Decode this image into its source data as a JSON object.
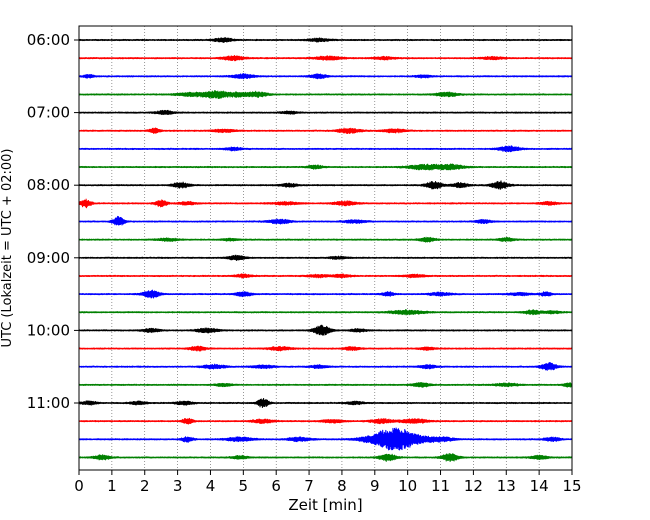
{
  "chart_data": {
    "type": "line",
    "title": "",
    "xlabel": "Zeit  [min]",
    "ylabel": "UTC (Lokalzeit = UTC + 02:00)",
    "xlim": [
      0,
      15
    ],
    "x_ticks": [
      0,
      1,
      2,
      3,
      4,
      5,
      6,
      7,
      8,
      9,
      10,
      11,
      12,
      13,
      14,
      15
    ],
    "x_tick_labels": [
      "0",
      "1",
      "2",
      "3",
      "4",
      "5",
      "6",
      "7",
      "8",
      "9",
      "10",
      "11",
      "12",
      "13",
      "14",
      "15"
    ],
    "y_tick_labels": [
      {
        "label": "06:00",
        "trace_index": 0
      },
      {
        "label": "07:00",
        "trace_index": 4
      },
      {
        "label": "08:00",
        "trace_index": 8
      },
      {
        "label": "09:00",
        "trace_index": 12
      },
      {
        "label": "10:00",
        "trace_index": 16
      },
      {
        "label": "11:00",
        "trace_index": 20
      }
    ],
    "grid": {
      "vertical": true,
      "style": "dotted"
    },
    "color_cycle": [
      "#000000",
      "#ff0000",
      "#0000ff",
      "#008000"
    ],
    "traces_count": 24,
    "trace_interval_minutes": 15,
    "base_noise": 0.18,
    "events": [
      [
        {
          "t": 4.4,
          "a": 0.8,
          "w": 0.35
        },
        {
          "t": 7.3,
          "a": 0.6,
          "w": 0.4
        }
      ],
      [
        {
          "t": 4.7,
          "a": 0.8,
          "w": 0.4
        },
        {
          "t": 7.6,
          "a": 0.7,
          "w": 0.5
        },
        {
          "t": 9.3,
          "a": 0.5,
          "w": 0.4
        },
        {
          "t": 12.6,
          "a": 0.5,
          "w": 0.4
        }
      ],
      [
        {
          "t": 0.3,
          "a": 0.6,
          "w": 0.2
        },
        {
          "t": 5.0,
          "a": 0.8,
          "w": 0.4
        },
        {
          "t": 7.3,
          "a": 0.8,
          "w": 0.3
        },
        {
          "t": 10.5,
          "a": 0.5,
          "w": 0.3
        }
      ],
      [
        {
          "t": 3.5,
          "a": 0.7,
          "w": 0.6
        },
        {
          "t": 4.2,
          "a": 1.3,
          "w": 0.4
        },
        {
          "t": 4.8,
          "a": 0.9,
          "w": 0.3
        },
        {
          "t": 5.4,
          "a": 1.0,
          "w": 0.4
        },
        {
          "t": 11.2,
          "a": 0.8,
          "w": 0.4
        }
      ],
      [
        {
          "t": 2.6,
          "a": 0.8,
          "w": 0.3
        },
        {
          "t": 6.4,
          "a": 0.5,
          "w": 0.3
        }
      ],
      [
        {
          "t": 2.3,
          "a": 0.9,
          "w": 0.2
        },
        {
          "t": 4.4,
          "a": 0.6,
          "w": 0.4
        },
        {
          "t": 8.2,
          "a": 0.9,
          "w": 0.4
        },
        {
          "t": 9.6,
          "a": 0.7,
          "w": 0.4
        }
      ],
      [
        {
          "t": 4.7,
          "a": 0.6,
          "w": 0.3
        },
        {
          "t": 13.1,
          "a": 1.0,
          "w": 0.4
        }
      ],
      [
        {
          "t": 7.2,
          "a": 0.6,
          "w": 0.3
        },
        {
          "t": 10.5,
          "a": 0.9,
          "w": 0.6
        },
        {
          "t": 11.3,
          "a": 0.9,
          "w": 0.5
        }
      ],
      [
        {
          "t": 3.1,
          "a": 1.1,
          "w": 0.3
        },
        {
          "t": 6.4,
          "a": 0.7,
          "w": 0.3
        },
        {
          "t": 10.8,
          "a": 1.4,
          "w": 0.3
        },
        {
          "t": 11.6,
          "a": 0.9,
          "w": 0.3
        },
        {
          "t": 12.8,
          "a": 1.5,
          "w": 0.3
        }
      ],
      [
        {
          "t": 0.2,
          "a": 1.5,
          "w": 0.2
        },
        {
          "t": 2.5,
          "a": 1.3,
          "w": 0.2
        },
        {
          "t": 3.3,
          "a": 0.6,
          "w": 0.3
        },
        {
          "t": 6.3,
          "a": 0.5,
          "w": 0.5
        },
        {
          "t": 8.1,
          "a": 0.8,
          "w": 0.4
        },
        {
          "t": 14.3,
          "a": 0.6,
          "w": 0.3
        }
      ],
      [
        {
          "t": 1.2,
          "a": 1.8,
          "w": 0.2
        },
        {
          "t": 6.1,
          "a": 0.8,
          "w": 0.4
        },
        {
          "t": 8.4,
          "a": 0.6,
          "w": 0.4
        },
        {
          "t": 12.3,
          "a": 0.6,
          "w": 0.3
        }
      ],
      [
        {
          "t": 2.7,
          "a": 0.5,
          "w": 0.4
        },
        {
          "t": 4.6,
          "a": 0.4,
          "w": 0.3
        },
        {
          "t": 10.6,
          "a": 0.8,
          "w": 0.3
        },
        {
          "t": 13.0,
          "a": 0.6,
          "w": 0.3
        }
      ],
      [
        {
          "t": 4.8,
          "a": 0.9,
          "w": 0.3
        },
        {
          "t": 7.9,
          "a": 0.5,
          "w": 0.3
        }
      ],
      [
        {
          "t": 5.0,
          "a": 0.6,
          "w": 0.3
        },
        {
          "t": 7.3,
          "a": 0.5,
          "w": 0.4
        },
        {
          "t": 8.0,
          "a": 0.6,
          "w": 0.3
        },
        {
          "t": 10.2,
          "a": 0.5,
          "w": 0.4
        }
      ],
      [
        {
          "t": 2.2,
          "a": 1.4,
          "w": 0.3
        },
        {
          "t": 5.0,
          "a": 0.8,
          "w": 0.3
        },
        {
          "t": 9.4,
          "a": 0.9,
          "w": 0.2
        },
        {
          "t": 11.0,
          "a": 0.6,
          "w": 0.4
        },
        {
          "t": 13.4,
          "a": 0.5,
          "w": 0.4
        },
        {
          "t": 14.2,
          "a": 0.8,
          "w": 0.2
        }
      ],
      [
        {
          "t": 10.0,
          "a": 0.8,
          "w": 0.6
        },
        {
          "t": 13.8,
          "a": 0.8,
          "w": 0.3
        },
        {
          "t": 14.4,
          "a": 0.5,
          "w": 0.3
        }
      ],
      [
        {
          "t": 2.2,
          "a": 0.7,
          "w": 0.3
        },
        {
          "t": 3.9,
          "a": 0.8,
          "w": 0.4
        },
        {
          "t": 7.4,
          "a": 1.9,
          "w": 0.3
        },
        {
          "t": 8.5,
          "a": 0.6,
          "w": 0.3
        }
      ],
      [
        {
          "t": 3.6,
          "a": 0.8,
          "w": 0.3
        },
        {
          "t": 6.1,
          "a": 0.7,
          "w": 0.4
        },
        {
          "t": 8.3,
          "a": 0.6,
          "w": 0.3
        },
        {
          "t": 10.6,
          "a": 0.5,
          "w": 0.3
        }
      ],
      [
        {
          "t": 4.1,
          "a": 0.8,
          "w": 0.4
        },
        {
          "t": 5.6,
          "a": 0.6,
          "w": 0.4
        },
        {
          "t": 7.3,
          "a": 0.6,
          "w": 0.3
        },
        {
          "t": 10.6,
          "a": 0.7,
          "w": 0.3
        },
        {
          "t": 14.3,
          "a": 1.4,
          "w": 0.3
        }
      ],
      [
        {
          "t": 4.4,
          "a": 0.5,
          "w": 0.3
        },
        {
          "t": 10.4,
          "a": 0.8,
          "w": 0.3
        },
        {
          "t": 13.0,
          "a": 0.6,
          "w": 0.4
        },
        {
          "t": 14.9,
          "a": 0.7,
          "w": 0.2
        }
      ],
      [
        {
          "t": 0.3,
          "a": 0.6,
          "w": 0.3
        },
        {
          "t": 1.8,
          "a": 0.6,
          "w": 0.3
        },
        {
          "t": 3.2,
          "a": 0.7,
          "w": 0.3
        },
        {
          "t": 5.6,
          "a": 1.7,
          "w": 0.2
        },
        {
          "t": 8.4,
          "a": 0.6,
          "w": 0.3
        }
      ],
      [
        {
          "t": 3.3,
          "a": 1.0,
          "w": 0.2
        },
        {
          "t": 5.6,
          "a": 0.7,
          "w": 0.4
        },
        {
          "t": 7.7,
          "a": 0.6,
          "w": 0.4
        },
        {
          "t": 9.2,
          "a": 0.8,
          "w": 0.4
        },
        {
          "t": 10.2,
          "a": 0.8,
          "w": 0.5
        }
      ],
      [
        {
          "t": 3.3,
          "a": 1.0,
          "w": 0.2
        },
        {
          "t": 4.9,
          "a": 0.7,
          "w": 0.5
        },
        {
          "t": 6.7,
          "a": 0.8,
          "w": 0.4
        },
        {
          "t": 9.6,
          "a": 4.2,
          "w": 0.9
        },
        {
          "t": 11.0,
          "a": 0.8,
          "w": 0.5
        },
        {
          "t": 14.4,
          "a": 0.7,
          "w": 0.3
        }
      ],
      [
        {
          "t": 0.7,
          "a": 0.9,
          "w": 0.3
        },
        {
          "t": 4.9,
          "a": 0.6,
          "w": 0.3
        },
        {
          "t": 9.4,
          "a": 1.4,
          "w": 0.3
        },
        {
          "t": 11.3,
          "a": 1.5,
          "w": 0.3
        },
        {
          "t": 14.0,
          "a": 0.7,
          "w": 0.3
        }
      ]
    ]
  }
}
